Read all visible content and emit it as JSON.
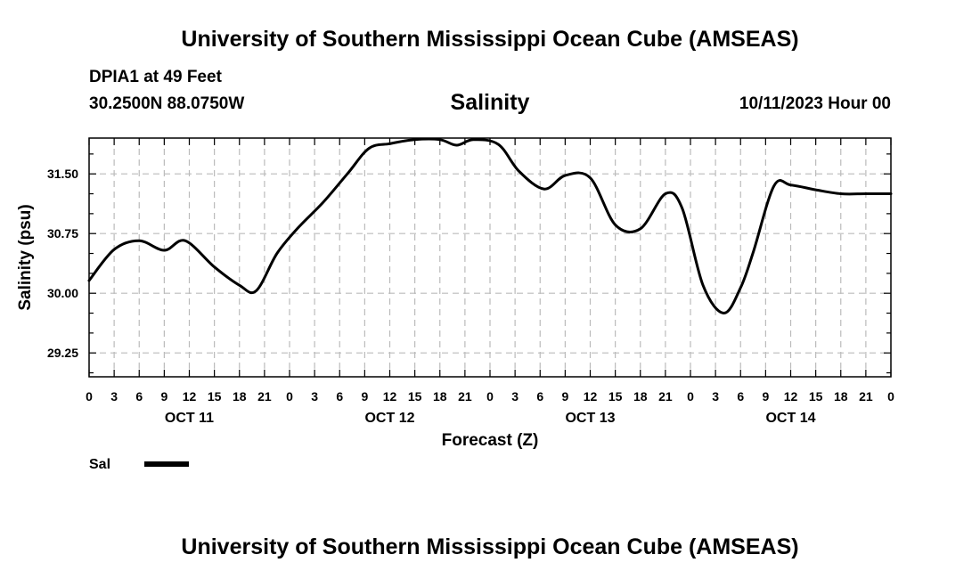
{
  "header": {
    "title": "University of Southern Mississippi Ocean Cube (AMSEAS)",
    "station": "DPIA1 at 49 Feet",
    "coordinates": "30.2500N  88.0750W",
    "chart_title": "Salinity",
    "datetime": "10/11/2023 Hour 00"
  },
  "footer": {
    "title": "University of Southern Mississippi Ocean Cube (AMSEAS)"
  },
  "chart_data": {
    "type": "line",
    "title": "Salinity",
    "xlabel": "Forecast (Z)",
    "ylabel": "Salinity (psu)",
    "xlim": [
      0,
      96
    ],
    "ylim": [
      28.95,
      31.95
    ],
    "grid": true,
    "x_tick_labels": [
      "0",
      "3",
      "6",
      "9",
      "12",
      "15",
      "18",
      "21",
      "0",
      "3",
      "6",
      "9",
      "12",
      "15",
      "18",
      "21",
      "0",
      "3",
      "6",
      "9",
      "12",
      "15",
      "18",
      "21",
      "0",
      "3",
      "6",
      "9",
      "12",
      "15",
      "18",
      "21",
      "0"
    ],
    "x_day_labels": [
      {
        "x": 12,
        "label": "OCT 11"
      },
      {
        "x": 36,
        "label": "OCT 12"
      },
      {
        "x": 60,
        "label": "OCT 13"
      },
      {
        "x": 84,
        "label": "OCT 14"
      }
    ],
    "y_ticks": [
      29.25,
      30.0,
      30.75,
      31.5
    ],
    "y_tick_labels": [
      "29.25",
      "30.00",
      "30.75",
      "31.50"
    ],
    "legend": {
      "position": "bottom-left",
      "label": "Sal"
    },
    "series": [
      {
        "name": "Sal",
        "x": [
          0,
          3,
          6,
          9,
          11.5,
          15,
          18,
          20,
          22.5,
          25,
          28,
          31,
          33.5,
          36,
          39,
          42,
          44,
          46,
          49,
          51.5,
          54.5,
          57,
          60,
          63,
          66,
          69,
          71,
          73.5,
          76,
          78,
          79.5,
          82,
          84,
          87,
          90,
          93,
          96
        ],
        "y": [
          30.16,
          30.55,
          30.66,
          30.54,
          30.66,
          30.33,
          30.1,
          30.03,
          30.5,
          30.82,
          31.14,
          31.51,
          31.82,
          31.88,
          31.93,
          31.93,
          31.86,
          31.93,
          31.87,
          31.53,
          31.31,
          31.48,
          31.45,
          30.86,
          30.81,
          31.25,
          31.07,
          30.1,
          29.75,
          30.07,
          30.51,
          31.35,
          31.36,
          31.3,
          31.25,
          31.25,
          31.25
        ]
      }
    ]
  }
}
